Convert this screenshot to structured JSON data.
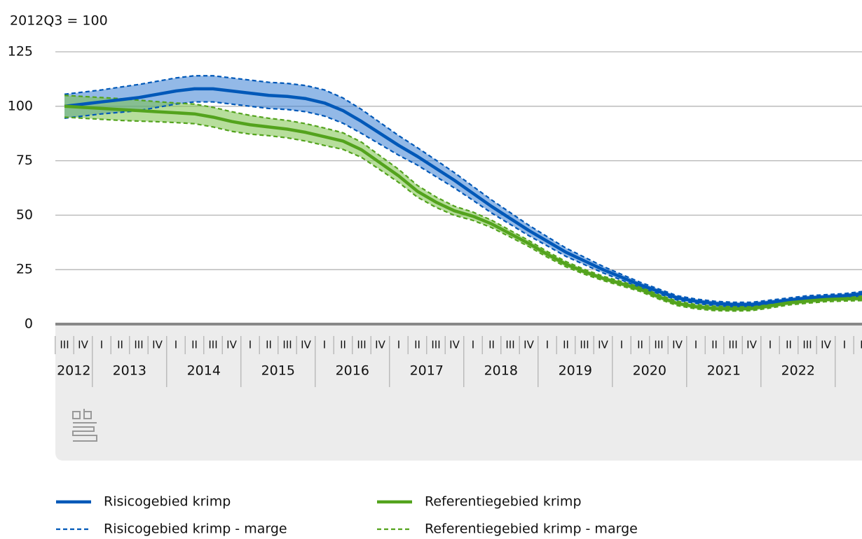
{
  "chart_data": {
    "type": "line",
    "y_axis_label": "2012Q3 = 100",
    "categories": [
      "III",
      "IV",
      "I",
      "II",
      "III",
      "IV",
      "I",
      "II",
      "III",
      "IV",
      "I",
      "II",
      "III",
      "IV",
      "I",
      "II",
      "III",
      "IV",
      "I",
      "II",
      "III",
      "IV",
      "I",
      "II",
      "III",
      "IV",
      "I",
      "II",
      "III",
      "IV",
      "I",
      "II",
      "III",
      "IV",
      "I",
      "II",
      "III",
      "IV",
      "I",
      "II",
      "III",
      "IV",
      "I",
      "II"
    ],
    "years": [
      "2012",
      "2013",
      "2014",
      "2015",
      "2016",
      "2017",
      "2018",
      "2019",
      "2020",
      "2021",
      "2022"
    ],
    "ylim": [
      0,
      125
    ],
    "yticks": [
      0,
      25,
      50,
      75,
      100,
      125
    ],
    "grid": true,
    "series": [
      {
        "name": "Risicogebied krimp",
        "color": "#0058b8",
        "style": "solid",
        "values": [
          100,
          101,
          102,
          103,
          104,
          105.5,
          107,
          108,
          108,
          107,
          106,
          105,
          104.5,
          103.5,
          101.5,
          98,
          93,
          87.5,
          82,
          77,
          71.5,
          66,
          60,
          54,
          48.5,
          43,
          38,
          33,
          29,
          25,
          21.5,
          18,
          15,
          12,
          10.5,
          9.5,
          9,
          9,
          10,
          11,
          12,
          12.5,
          13,
          14
        ]
      },
      {
        "name": "Risicogebied krimp - marge",
        "color": "#0058b8",
        "style": "dashed",
        "band": "#3b7fd4",
        "upper": [
          105.5,
          106.5,
          107.5,
          108.8,
          110,
          111.5,
          113,
          114,
          114,
          113,
          112,
          111,
          110.5,
          109.5,
          107.5,
          103.8,
          98.5,
          92.5,
          86.5,
          81,
          75.3,
          69.5,
          63.2,
          57,
          51.2,
          45.4,
          40.1,
          34.9,
          30.7,
          26.5,
          22.8,
          19.2,
          16.1,
          13,
          11.5,
          10.5,
          10,
          10,
          11,
          12,
          13,
          13.5,
          14,
          15
        ],
        "lower": [
          94.5,
          95.5,
          96.5,
          97.2,
          98,
          99.5,
          101,
          102,
          102,
          101,
          100,
          99,
          98.5,
          97.5,
          95.5,
          92.2,
          87.5,
          82.5,
          77.5,
          73,
          67.7,
          62.5,
          56.8,
          51,
          45.8,
          40.6,
          35.9,
          31.1,
          27.3,
          23.5,
          20.2,
          16.8,
          13.9,
          11,
          9.5,
          8.5,
          8,
          8,
          9,
          10,
          11,
          11.5,
          12,
          13
        ]
      },
      {
        "name": "Referentiegebied krimp",
        "color": "#53a31d",
        "style": "solid",
        "values": [
          100,
          99.5,
          99,
          98.5,
          98,
          97.5,
          97,
          96.5,
          95,
          93,
          91.5,
          90.5,
          89.5,
          88,
          86,
          84,
          80,
          74,
          68,
          61,
          56,
          52,
          49.5,
          46,
          41.5,
          37,
          32,
          27.5,
          24,
          21,
          18.5,
          16,
          12.5,
          9.5,
          8,
          7.2,
          7,
          7.2,
          8.4,
          9.8,
          10.6,
          11.3,
          11.6,
          11.8
        ]
      },
      {
        "name": "Referentiegebied krimp - marge",
        "color": "#53a31d",
        "style": "dashed",
        "band": "#7cc24a",
        "upper": [
          105,
          104.5,
          104,
          103.5,
          102.8,
          102.1,
          101.5,
          101,
          99.5,
          97.5,
          95.8,
          94.5,
          93.5,
          92,
          90,
          87.8,
          83.5,
          77.2,
          71,
          63.7,
          58.4,
          54.1,
          51.4,
          47.7,
          43,
          38.4,
          33.3,
          28.7,
          25.1,
          22,
          19.5,
          17,
          13.5,
          10.5,
          9,
          8.2,
          8,
          8.2,
          9.4,
          10.8,
          11.6,
          12.3,
          12.6,
          12.8
        ],
        "lower": [
          95,
          94.5,
          94,
          93.5,
          93.2,
          92.9,
          92.5,
          92,
          90.5,
          88.5,
          87.2,
          86.5,
          85.5,
          84,
          82,
          80.2,
          76.5,
          70.8,
          65,
          58.3,
          53.6,
          49.9,
          47.6,
          44.3,
          40,
          35.6,
          30.7,
          26.3,
          22.9,
          20,
          17.5,
          15,
          11.5,
          8.5,
          7,
          6.2,
          6,
          6.2,
          7.4,
          8.8,
          9.6,
          10.3,
          10.6,
          10.8
        ]
      }
    ]
  }
}
